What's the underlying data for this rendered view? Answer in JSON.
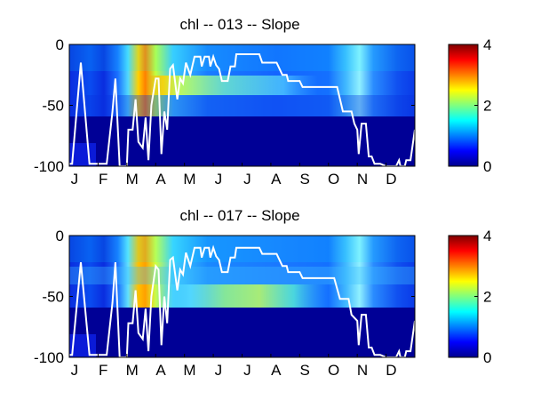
{
  "chart_data": [
    {
      "type": "heatmap",
      "title": "chl -- 013 -- Slope",
      "xticks": [
        "J",
        "F",
        "M",
        "A",
        "M",
        "J",
        "J",
        "A",
        "S",
        "O",
        "N",
        "D"
      ],
      "yticks": [
        "0",
        "-50",
        "-100"
      ],
      "ylim": [
        -100,
        0
      ],
      "colorbar": {
        "ticks": [
          "4",
          "2",
          "0"
        ],
        "range": [
          0,
          4
        ],
        "colormap": "jet"
      },
      "contour_line": [
        {
          "x": 0,
          "y": -98
        },
        {
          "x": 0.1,
          "y": -98
        },
        {
          "x": 0.4,
          "y": -15
        },
        {
          "x": 0.7,
          "y": -98
        },
        {
          "x": 1,
          "y": -98
        },
        {
          "x": 1.3,
          "y": -98
        },
        {
          "x": 1.5,
          "y": -55
        },
        {
          "x": 1.6,
          "y": -28
        },
        {
          "x": 1.75,
          "y": -100
        },
        {
          "x": 2,
          "y": -100
        },
        {
          "x": 2.05,
          "y": -70
        },
        {
          "x": 2.2,
          "y": -70
        },
        {
          "x": 2.3,
          "y": -45
        },
        {
          "x": 2.4,
          "y": -80
        },
        {
          "x": 2.55,
          "y": -85
        },
        {
          "x": 2.65,
          "y": -60
        },
        {
          "x": 2.75,
          "y": -95
        },
        {
          "x": 2.85,
          "y": -50
        },
        {
          "x": 3.0,
          "y": -28
        },
        {
          "x": 3.1,
          "y": -28
        },
        {
          "x": 3.2,
          "y": -90
        },
        {
          "x": 3.3,
          "y": -55
        },
        {
          "x": 3.4,
          "y": -70
        },
        {
          "x": 3.5,
          "y": -20
        },
        {
          "x": 3.6,
          "y": -17
        },
        {
          "x": 3.75,
          "y": -45
        },
        {
          "x": 3.85,
          "y": -28
        },
        {
          "x": 3.95,
          "y": -32
        },
        {
          "x": 4.05,
          "y": -15
        },
        {
          "x": 4.2,
          "y": -25
        },
        {
          "x": 4.35,
          "y": -10
        },
        {
          "x": 4.55,
          "y": -10
        },
        {
          "x": 4.6,
          "y": -18
        },
        {
          "x": 4.7,
          "y": -10
        },
        {
          "x": 4.85,
          "y": -10
        },
        {
          "x": 4.9,
          "y": -18
        },
        {
          "x": 5.0,
          "y": -10
        },
        {
          "x": 5.1,
          "y": -17
        },
        {
          "x": 5.2,
          "y": -20
        },
        {
          "x": 5.3,
          "y": -30
        },
        {
          "x": 5.5,
          "y": -30
        },
        {
          "x": 5.6,
          "y": -18
        },
        {
          "x": 5.75,
          "y": -18
        },
        {
          "x": 5.8,
          "y": -8
        },
        {
          "x": 6.6,
          "y": -8
        },
        {
          "x": 6.7,
          "y": -15
        },
        {
          "x": 7.2,
          "y": -15
        },
        {
          "x": 7.4,
          "y": -25
        },
        {
          "x": 7.55,
          "y": -25
        },
        {
          "x": 7.6,
          "y": -30
        },
        {
          "x": 8.0,
          "y": -30
        },
        {
          "x": 8.1,
          "y": -35
        },
        {
          "x": 9.3,
          "y": -35
        },
        {
          "x": 9.5,
          "y": -55
        },
        {
          "x": 9.8,
          "y": -55
        },
        {
          "x": 9.9,
          "y": -65
        },
        {
          "x": 10.0,
          "y": -70
        },
        {
          "x": 10.05,
          "y": -90
        },
        {
          "x": 10.15,
          "y": -65
        },
        {
          "x": 10.3,
          "y": -65
        },
        {
          "x": 10.4,
          "y": -92
        },
        {
          "x": 10.5,
          "y": -92
        },
        {
          "x": 10.6,
          "y": -98
        },
        {
          "x": 10.8,
          "y": -98
        },
        {
          "x": 11.0,
          "y": -100
        },
        {
          "x": 11.35,
          "y": -100
        },
        {
          "x": 11.45,
          "y": -95
        },
        {
          "x": 11.5,
          "y": -100
        },
        {
          "x": 11.65,
          "y": -100
        },
        {
          "x": 11.7,
          "y": -95
        },
        {
          "x": 11.85,
          "y": -95
        },
        {
          "x": 12,
          "y": -70
        }
      ]
    },
    {
      "type": "heatmap",
      "title": "chl -- 017 -- Slope",
      "xticks": [
        "J",
        "F",
        "M",
        "A",
        "M",
        "J",
        "J",
        "A",
        "S",
        "O",
        "N",
        "D"
      ],
      "yticks": [
        "0",
        "-50",
        "-100"
      ],
      "ylim": [
        -100,
        0
      ],
      "colorbar": {
        "ticks": [
          "4",
          "2",
          "0"
        ],
        "range": [
          0,
          4
        ],
        "colormap": "jet"
      },
      "contour_line": [
        {
          "x": 0,
          "y": -98
        },
        {
          "x": 0.1,
          "y": -98
        },
        {
          "x": 0.4,
          "y": -22
        },
        {
          "x": 0.7,
          "y": -98
        },
        {
          "x": 1,
          "y": -98
        },
        {
          "x": 1.3,
          "y": -98
        },
        {
          "x": 1.5,
          "y": -55
        },
        {
          "x": 1.6,
          "y": -22
        },
        {
          "x": 1.75,
          "y": -100
        },
        {
          "x": 2,
          "y": -100
        },
        {
          "x": 2.05,
          "y": -72
        },
        {
          "x": 2.2,
          "y": -72
        },
        {
          "x": 2.3,
          "y": -45
        },
        {
          "x": 2.4,
          "y": -80
        },
        {
          "x": 2.55,
          "y": -85
        },
        {
          "x": 2.65,
          "y": -60
        },
        {
          "x": 2.75,
          "y": -95
        },
        {
          "x": 2.85,
          "y": -50
        },
        {
          "x": 3.0,
          "y": -25
        },
        {
          "x": 3.1,
          "y": -28
        },
        {
          "x": 3.2,
          "y": -90
        },
        {
          "x": 3.3,
          "y": -50
        },
        {
          "x": 3.4,
          "y": -72
        },
        {
          "x": 3.5,
          "y": -20
        },
        {
          "x": 3.6,
          "y": -18
        },
        {
          "x": 3.75,
          "y": -45
        },
        {
          "x": 3.85,
          "y": -28
        },
        {
          "x": 3.95,
          "y": -32
        },
        {
          "x": 4.05,
          "y": -14
        },
        {
          "x": 4.2,
          "y": -25
        },
        {
          "x": 4.35,
          "y": -10
        },
        {
          "x": 4.55,
          "y": -10
        },
        {
          "x": 4.6,
          "y": -18
        },
        {
          "x": 4.7,
          "y": -10
        },
        {
          "x": 4.85,
          "y": -10
        },
        {
          "x": 4.9,
          "y": -18
        },
        {
          "x": 5.0,
          "y": -10
        },
        {
          "x": 5.1,
          "y": -17
        },
        {
          "x": 5.2,
          "y": -20
        },
        {
          "x": 5.3,
          "y": -30
        },
        {
          "x": 5.5,
          "y": -30
        },
        {
          "x": 5.6,
          "y": -18
        },
        {
          "x": 5.75,
          "y": -18
        },
        {
          "x": 5.8,
          "y": -10
        },
        {
          "x": 6.6,
          "y": -10
        },
        {
          "x": 6.7,
          "y": -15
        },
        {
          "x": 7.2,
          "y": -15
        },
        {
          "x": 7.4,
          "y": -25
        },
        {
          "x": 7.55,
          "y": -25
        },
        {
          "x": 7.6,
          "y": -30
        },
        {
          "x": 8.0,
          "y": -30
        },
        {
          "x": 8.1,
          "y": -35
        },
        {
          "x": 9.2,
          "y": -35
        },
        {
          "x": 9.4,
          "y": -52
        },
        {
          "x": 9.7,
          "y": -52
        },
        {
          "x": 9.8,
          "y": -65
        },
        {
          "x": 10.0,
          "y": -70
        },
        {
          "x": 10.05,
          "y": -90
        },
        {
          "x": 10.15,
          "y": -65
        },
        {
          "x": 10.3,
          "y": -65
        },
        {
          "x": 10.4,
          "y": -92
        },
        {
          "x": 10.5,
          "y": -92
        },
        {
          "x": 10.6,
          "y": -98
        },
        {
          "x": 10.8,
          "y": -98
        },
        {
          "x": 11.0,
          "y": -100
        },
        {
          "x": 11.35,
          "y": -100
        },
        {
          "x": 11.45,
          "y": -95
        },
        {
          "x": 11.5,
          "y": -100
        },
        {
          "x": 11.65,
          "y": -100
        },
        {
          "x": 11.7,
          "y": -95
        },
        {
          "x": 11.85,
          "y": -95
        },
        {
          "x": 12,
          "y": -70
        }
      ]
    }
  ]
}
